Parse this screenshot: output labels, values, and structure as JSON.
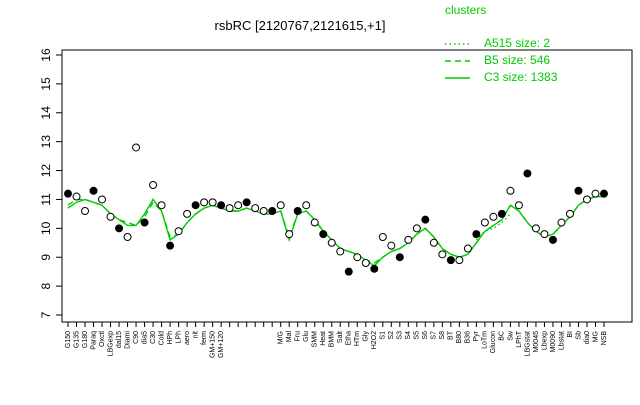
{
  "chart_data": {
    "type": "line",
    "title": "rsbRC [2120767,2121615,+1]",
    "legend_title": "clusters",
    "legend_position": "top-right",
    "categories": [
      "G150",
      "G135",
      "G180",
      "Paraq",
      "Oxctl",
      "LBGexp",
      "dal15",
      "Diami",
      "C90",
      "dia5",
      "C30",
      "Cold",
      "HPh",
      "LPh",
      "aero",
      "nit",
      "ferm",
      "GM+150",
      "GM+120",
      null,
      null,
      null,
      null,
      null,
      null,
      "M/G",
      "Mal",
      "Fru",
      "Glu",
      "SMM",
      "Heat",
      "BMM",
      "Salt",
      "Etha",
      "HTm",
      "Gly",
      "H2O2",
      "S1",
      "S2",
      "S3",
      "S4",
      "S5",
      "S6",
      "S7",
      "S8",
      "BT",
      "B80",
      "B36",
      "Pyr",
      "LoTm",
      "Glucon",
      "BC",
      "Sw",
      "LPhT",
      "LBGstat",
      "M0045",
      "Lbexp",
      "M0090",
      "Lbstat",
      "BI",
      "Sb",
      "dia0",
      "MG",
      "NSB"
    ],
    "series": [
      {
        "name": "A515 size: 2",
        "color": "#00cc00",
        "dash": "dotted",
        "values": [
          null,
          null,
          null,
          null,
          null,
          null,
          null,
          null,
          null,
          null,
          null,
          null,
          null,
          null,
          null,
          null,
          null,
          null,
          null,
          null,
          null,
          null,
          null,
          null,
          null,
          null,
          null,
          null,
          null,
          null,
          null,
          null,
          null,
          null,
          null,
          null,
          null,
          null,
          null,
          null,
          null,
          null,
          null,
          null,
          null,
          null,
          null,
          null,
          9.6,
          9.9,
          10.0,
          10.2,
          10.5,
          null,
          null,
          null,
          null,
          null,
          null,
          null,
          null,
          null,
          null,
          null
        ]
      },
      {
        "name": "B5 size: 546",
        "color": "#00cc00",
        "dash": "dashed",
        "values": [
          10.8,
          11.0,
          11.0,
          10.9,
          10.8,
          10.5,
          10.3,
          10.2,
          10.1,
          10.4,
          10.9,
          10.6,
          9.7,
          9.8,
          10.2,
          10.5,
          10.7,
          10.8,
          10.7,
          10.6,
          10.6,
          10.7,
          10.6,
          10.5,
          10.5,
          10.6,
          9.7,
          10.5,
          10.6,
          10.3,
          9.9,
          9.6,
          9.3,
          9.2,
          9.1,
          8.9,
          8.8,
          9.0,
          9.2,
          9.3,
          9.5,
          9.8,
          10.0,
          9.7,
          9.3,
          9.1,
          9.0,
          9.1,
          9.5,
          9.9,
          10.1,
          10.3,
          10.8,
          10.6,
          10.2,
          9.9,
          9.7,
          9.8,
          10.1,
          10.4,
          10.8,
          11.0,
          11.1,
          11.1
        ]
      },
      {
        "name": "C3 size: 1383",
        "color": "#00cc00",
        "dash": "solid",
        "values": [
          10.7,
          10.9,
          11.0,
          10.9,
          10.8,
          10.5,
          10.3,
          10.1,
          10.1,
          10.5,
          11.0,
          10.6,
          9.6,
          9.8,
          10.2,
          10.5,
          10.7,
          10.8,
          10.7,
          10.6,
          10.6,
          10.7,
          10.6,
          10.5,
          10.5,
          10.6,
          9.6,
          10.5,
          10.6,
          10.3,
          9.9,
          9.6,
          9.3,
          9.2,
          9.1,
          8.9,
          8.7,
          9.0,
          9.2,
          9.3,
          9.5,
          9.8,
          10.0,
          9.7,
          9.3,
          9.1,
          9.0,
          9.1,
          9.5,
          9.9,
          10.1,
          10.3,
          10.8,
          10.6,
          10.2,
          9.9,
          9.7,
          9.8,
          10.1,
          10.4,
          10.8,
          11.0,
          11.1,
          11.1
        ]
      }
    ],
    "points": [
      11.2,
      11.1,
      10.6,
      11.3,
      11.0,
      10.4,
      10.0,
      9.7,
      12.8,
      10.2,
      11.5,
      10.8,
      9.4,
      9.9,
      10.5,
      10.8,
      10.9,
      10.9,
      10.8,
      10.7,
      10.8,
      10.9,
      10.7,
      10.6,
      10.6,
      10.8,
      9.8,
      10.6,
      10.8,
      10.2,
      9.8,
      9.5,
      9.2,
      8.5,
      9.0,
      8.8,
      8.6,
      9.7,
      9.4,
      9.0,
      9.6,
      10.0,
      10.3,
      9.5,
      9.1,
      8.9,
      8.9,
      9.3,
      9.8,
      10.2,
      10.4,
      10.5,
      11.3,
      10.8,
      11.9,
      10.0,
      9.8,
      9.6,
      10.2,
      10.5,
      11.3,
      11.0,
      11.2,
      11.2
    ],
    "ylim": [
      7,
      16
    ],
    "yticks": [
      7,
      8,
      9,
      10,
      11,
      12,
      13,
      14,
      15,
      16
    ]
  }
}
